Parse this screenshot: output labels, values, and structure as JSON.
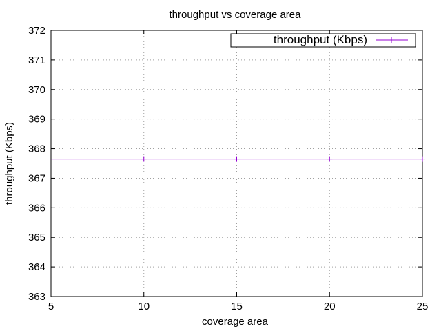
{
  "chart_data": {
    "type": "line",
    "title": "throughput vs coverage area",
    "xlabel": "coverage area",
    "ylabel": "throughput (Kbps)",
    "xlim": [
      5,
      25
    ],
    "ylim": [
      363,
      372
    ],
    "xticks": [
      "5",
      "10",
      "15",
      "20",
      "25"
    ],
    "yticks": [
      "363",
      "364",
      "365",
      "366",
      "367",
      "368",
      "369",
      "370",
      "371",
      "372"
    ],
    "grid": true,
    "legend_position": "top-right",
    "series": [
      {
        "name": "throughput (Kbps)",
        "color": "#9400d3",
        "marker": "plus",
        "x": [
          10,
          15,
          20,
          25
        ],
        "y": [
          367.65,
          367.65,
          367.65,
          367.65
        ]
      }
    ]
  }
}
